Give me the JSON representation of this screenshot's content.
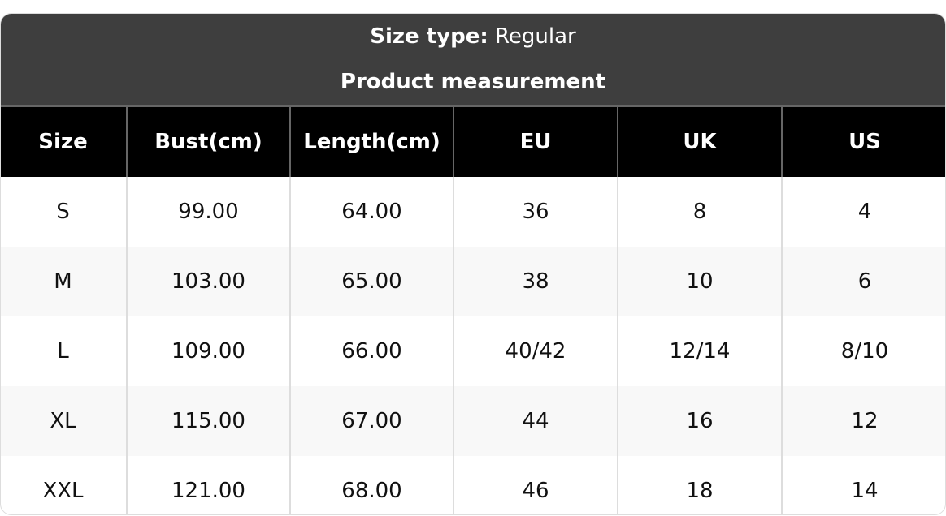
{
  "header": {
    "size_type_label": "Size type:",
    "size_type_value": "Regular",
    "subtitle": "Product measurement"
  },
  "columns": [
    "Size",
    "Bust(cm)",
    "Length(cm)",
    "EU",
    "UK",
    "US"
  ],
  "rows": [
    [
      "S",
      "99.00",
      "64.00",
      "36",
      "8",
      "4"
    ],
    [
      "M",
      "103.00",
      "65.00",
      "38",
      "10",
      "6"
    ],
    [
      "L",
      "109.00",
      "66.00",
      "40/42",
      "12/14",
      "8/10"
    ],
    [
      "XL",
      "115.00",
      "67.00",
      "44",
      "16",
      "12"
    ],
    [
      "XXL",
      "121.00",
      "68.00",
      "46",
      "18",
      "14"
    ]
  ]
}
